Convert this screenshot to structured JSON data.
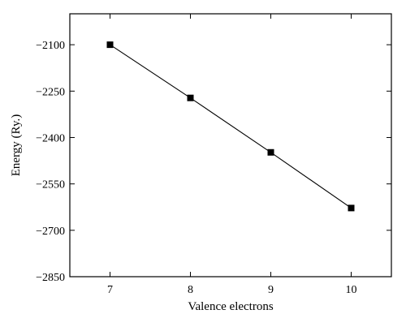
{
  "chart_data": {
    "type": "line",
    "title": "",
    "xlabel": "Valence electrons",
    "ylabel": "Energy (Ry.)",
    "xlim": [
      6.5,
      10.5
    ],
    "ylim": [
      -2850,
      -2000
    ],
    "x_ticks": [
      7,
      8,
      9,
      10
    ],
    "y_ticks": [
      -2100,
      -2250,
      -2400,
      -2550,
      -2700,
      -2850
    ],
    "x_tick_labels": [
      "7",
      "8",
      "9",
      "10"
    ],
    "y_tick_labels": [
      "−2100",
      "−2250",
      "−2400",
      "−2550",
      "−2700",
      "−2850"
    ],
    "grid": false,
    "legend": "none",
    "series": [
      {
        "marker": "square",
        "color": "#000000",
        "x": [
          7,
          8,
          9,
          10
        ],
        "y": [
          -2100,
          -2272,
          -2448,
          -2628
        ]
      }
    ]
  }
}
